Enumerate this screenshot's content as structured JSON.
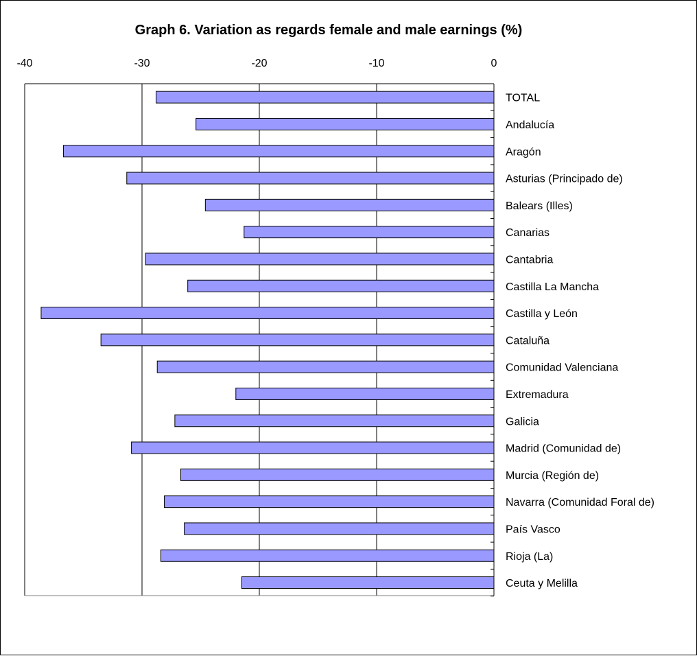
{
  "chart_data": {
    "type": "bar",
    "orientation": "horizontal",
    "title": "Graph 6. Variation as regards female and male earnings (%)",
    "xlabel": "",
    "ylabel": "",
    "xlim": [
      -40,
      0
    ],
    "x_ticks": [
      -40,
      -30,
      -20,
      -10,
      0
    ],
    "x_tick_labels": [
      "-40",
      "-30",
      "-20",
      "-10",
      "0"
    ],
    "x_axis_position": "top",
    "grid": "vertical",
    "legend": "none",
    "categories": [
      "TOTAL",
      "Andalucía",
      "Aragón",
      "Asturias (Principado de)",
      "Balears (Illes)",
      "Canarias",
      "Cantabria",
      "Castilla La Mancha",
      "Castilla y León",
      "Cataluña",
      "Comunidad Valenciana",
      "Extremadura",
      "Galicia",
      "Madrid (Comunidad de)",
      "Murcia (Región de)",
      "Navarra (Comunidad Foral de)",
      "País Vasco",
      "Rioja (La)",
      "Ceuta y Melilla"
    ],
    "values": [
      -28.8,
      -25.4,
      -36.7,
      -31.3,
      -24.6,
      -21.3,
      -29.7,
      -26.1,
      -38.6,
      -33.5,
      -28.7,
      -22.0,
      -27.2,
      -30.9,
      -26.7,
      -28.1,
      -26.4,
      -28.4,
      -21.5
    ],
    "colors": {
      "bar_fill": "#9999ff",
      "bar_stroke": "#000000",
      "grid": "#000000"
    }
  }
}
